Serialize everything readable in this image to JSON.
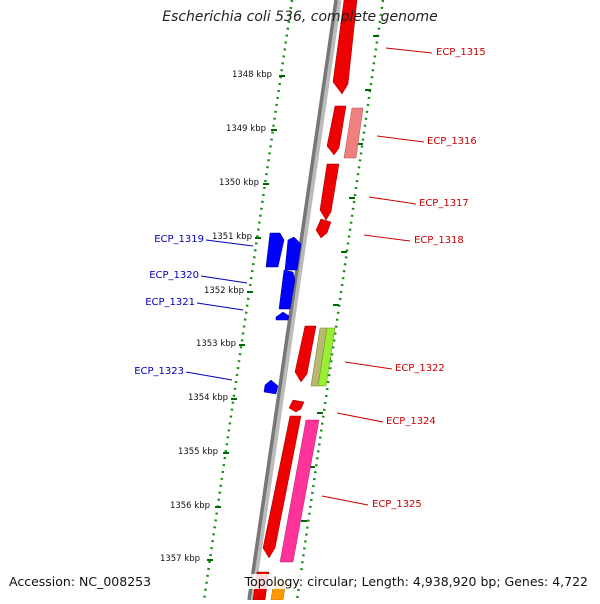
{
  "header": {
    "title": "Escherichia coli 536, complete genome"
  },
  "footer": {
    "accession": "Accession: NC_008253",
    "topology": "Topology: circular; Length: 4,938,920 bp; Genes: 4,722"
  },
  "scale": {
    "ticks": [
      "1348 kbp",
      "1349 kbp",
      "1350 kbp",
      "1351 kbp",
      "1352 kbp",
      "1353 kbp",
      "1354 kbp",
      "1355 kbp",
      "1356 kbp",
      "1357 kbp"
    ]
  },
  "genes": {
    "forward": [
      "ECP_1315",
      "ECP_1316",
      "ECP_1317",
      "ECP_1318",
      "ECP_1322",
      "ECP_1324",
      "ECP_1325"
    ],
    "reverse": [
      "ECP_1319",
      "ECP_1320",
      "ECP_1321",
      "ECP_1323"
    ]
  },
  "colors": {
    "forward_label": "#cc0000",
    "reverse_label": "#0000bb",
    "backbone": "#888888",
    "tick": "#006600",
    "gene_red": "#ee0000",
    "gene_salmon": "#f08080",
    "gene_blue": "#0000ff",
    "gene_olive": "#b8b870",
    "gene_lime": "#99ee33",
    "gene_pink": "#ff3399",
    "gene_orange": "#ff9900"
  }
}
